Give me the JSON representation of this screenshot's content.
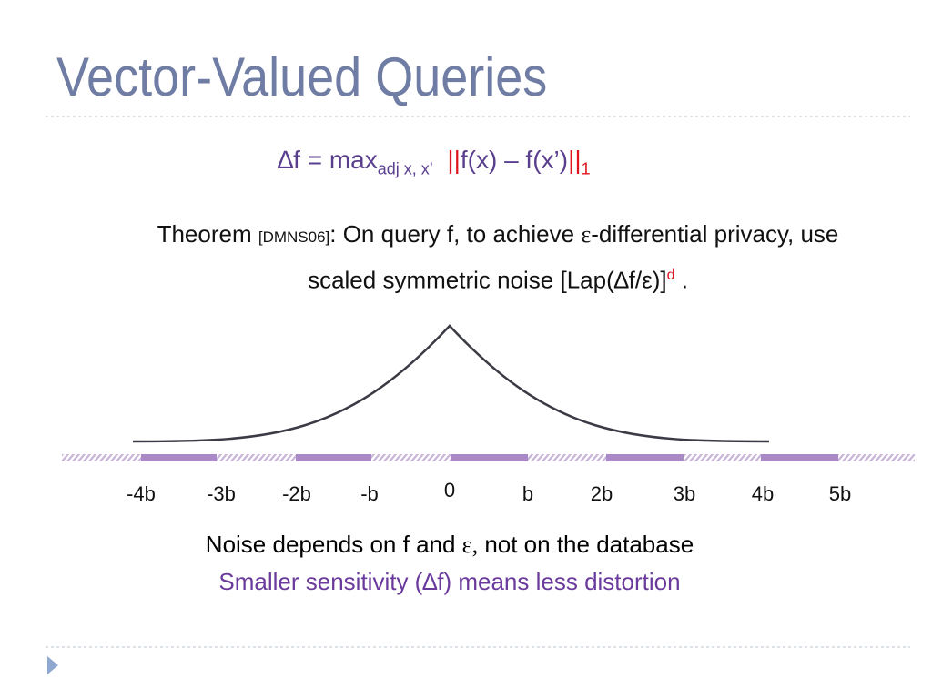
{
  "title": "Vector-Valued Queries",
  "formula": {
    "lhs": "∆f = max",
    "sub": "adj x, x’",
    "open": "||",
    "body": "f(x) – f(x’)",
    "close": "||",
    "norm": "1"
  },
  "theorem": {
    "lead": "Theorem ",
    "cite": "[DMNS06]",
    "line1": ": On query f, to achieve ",
    "eps": "ε",
    "line1_end": "-differential privacy, use",
    "line2": "scaled symmetric noise [Lap(∆f/ε)]",
    "power": "d",
    "end": " ."
  },
  "axis_labels": [
    "-4b",
    "-3b",
    "-2b",
    "-b",
    "0",
    "b",
    "2b",
    "3b",
    "4b",
    "5b"
  ],
  "notes": {
    "line1_start": "Noise depends on f and ",
    "line1_eps": "ε,",
    "line1_end": " not on the database",
    "line2": "Smaller sensitivity (∆f) means less distortion"
  }
}
